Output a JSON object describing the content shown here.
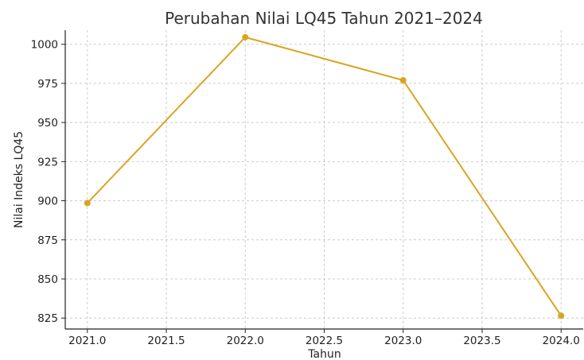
{
  "chart_data": {
    "type": "line",
    "title": "Perubahan Nilai LQ45 Tahun 2021–2024",
    "xlabel": "Tahun",
    "ylabel": "Nilai Indeks LQ45",
    "x": [
      2021.0,
      2022.0,
      2023.0,
      2024.0
    ],
    "series": [
      {
        "values": [
          898.5,
          1004.5,
          977,
          826.5
        ],
        "color": "#DAA520"
      }
    ],
    "x_ticks": [
      "2021.0",
      "2021.5",
      "2022.0",
      "2022.5",
      "2023.0",
      "2023.5",
      "2024.0"
    ],
    "y_ticks": [
      "825",
      "850",
      "875",
      "900",
      "925",
      "950",
      "975",
      "1000"
    ],
    "xlim": [
      2020.86,
      2024.14
    ],
    "ylim": [
      818,
      1009
    ],
    "grid": true,
    "marker": "circle",
    "legend": "none"
  }
}
